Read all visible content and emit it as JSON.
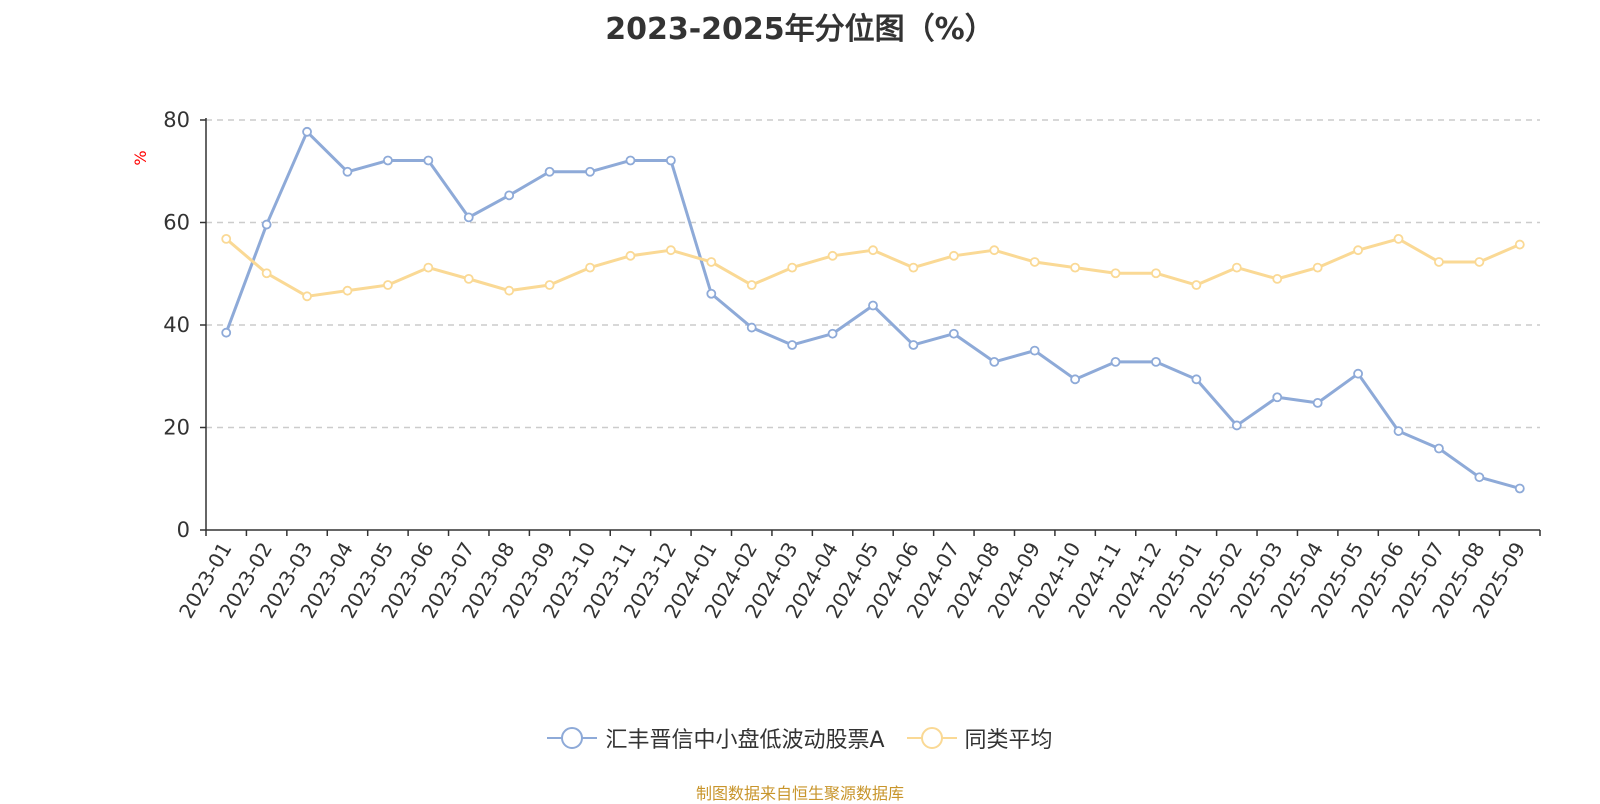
{
  "chart_data": {
    "type": "line",
    "title": "2023-2025年分位图（%）",
    "ylabel": "%",
    "ylim": [
      0,
      80
    ],
    "yticks": [
      0,
      20,
      40,
      60,
      80
    ],
    "grid": true,
    "legend_position": "bottom",
    "categories": [
      "2023-01",
      "2023-02",
      "2023-03",
      "2023-04",
      "2023-05",
      "2023-06",
      "2023-07",
      "2023-08",
      "2023-09",
      "2023-10",
      "2023-11",
      "2023-12",
      "2024-01",
      "2024-02",
      "2024-03",
      "2024-04",
      "2024-05",
      "2024-06",
      "2024-07",
      "2024-08",
      "2024-09",
      "2024-10",
      "2024-11",
      "2024-12",
      "2025-01",
      "2025-02",
      "2025-03",
      "2025-04",
      "2025-05",
      "2025-06",
      "2025-07",
      "2025-08",
      "2025-09"
    ],
    "series": [
      {
        "name": "汇丰晋信中小盘低波动股票A",
        "color": "#8eaad8",
        "values": [
          38.5,
          59.6,
          77.7,
          69.9,
          72.1,
          72.1,
          61.0,
          65.3,
          69.9,
          69.9,
          72.1,
          72.1,
          46.1,
          39.5,
          36.1,
          38.3,
          43.8,
          36.1,
          38.3,
          32.8,
          35.0,
          29.4,
          32.8,
          32.8,
          29.4,
          20.4,
          25.9,
          24.8,
          30.5,
          19.3,
          15.9,
          10.3,
          8.1
        ]
      },
      {
        "name": "同类平均",
        "color": "#fad995",
        "values": [
          56.8,
          50.1,
          45.6,
          46.7,
          47.8,
          51.2,
          49.0,
          46.7,
          47.8,
          51.2,
          53.5,
          54.6,
          52.3,
          47.8,
          51.2,
          53.5,
          54.6,
          51.2,
          53.5,
          54.6,
          52.3,
          51.2,
          50.1,
          50.1,
          47.8,
          51.2,
          49.0,
          51.2,
          54.6,
          56.8,
          52.3,
          52.3,
          55.7
        ]
      }
    ]
  },
  "source_note": "制图数据来自恒生聚源数据库"
}
